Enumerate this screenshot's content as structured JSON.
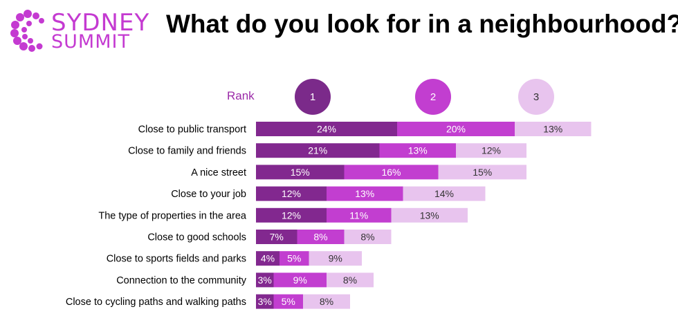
{
  "header": {
    "logo_line1": "SYDNEY",
    "logo_line2": "SUMMIT",
    "title": "What do you look for in a neighbourhood?"
  },
  "rank": {
    "label": "Rank",
    "items": [
      {
        "text": "1",
        "color": "#7b2a8a",
        "text_color": "#ffffff"
      },
      {
        "text": "2",
        "color": "#c23ed0",
        "text_color": "#ffffff"
      },
      {
        "text": "3",
        "color": "#e8c4ee",
        "text_color": "#333333"
      }
    ]
  },
  "chart_data": {
    "type": "bar",
    "orientation": "horizontal",
    "stacked": true,
    "categories": [
      "Close to public transport",
      "Close to family and friends",
      "A nice street",
      "Close to your job",
      "The type of properties in the area",
      "Close to good schools",
      "Close to sports fields and parks",
      "Connection to the community",
      "Close to cycling paths and walking paths"
    ],
    "series": [
      {
        "name": "1",
        "color": "#82288f",
        "label_color": "#ffffff",
        "values": [
          24,
          21,
          15,
          12,
          12,
          7,
          4,
          3,
          3
        ]
      },
      {
        "name": "2",
        "color": "#c23ed0",
        "label_color": "#ffffff",
        "values": [
          20,
          13,
          16,
          13,
          11,
          8,
          5,
          9,
          5
        ]
      },
      {
        "name": "3",
        "color": "#e8c4ee",
        "label_color": "#333333",
        "values": [
          13,
          12,
          15,
          14,
          13,
          8,
          9,
          8,
          8
        ]
      }
    ],
    "value_suffix": "%",
    "xlim": [
      0,
      60
    ],
    "grid": false,
    "legend": "top (rank circles)"
  }
}
